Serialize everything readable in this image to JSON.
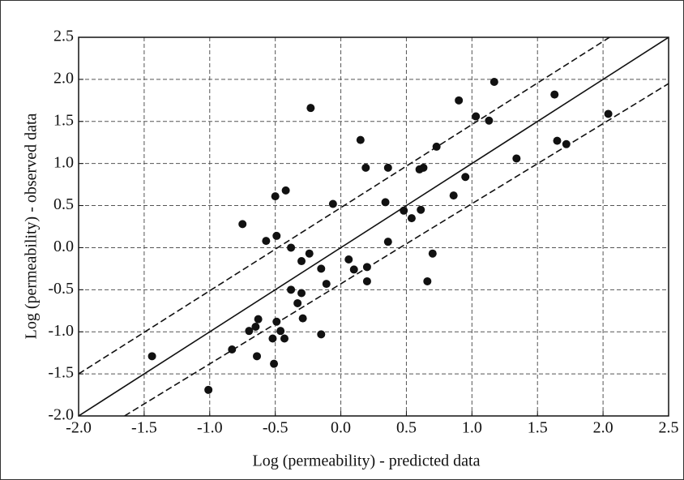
{
  "chart_data": {
    "type": "scatter",
    "x_label": "Log (permeability) - predicted data",
    "y_label": "Log (permeability) - observed data",
    "color": "#111111",
    "grid": true,
    "xlim": [
      -2.0,
      2.5
    ],
    "ylim": [
      -2.0,
      2.5
    ],
    "xticks": [
      {
        "value": -2,
        "label": "-2.0"
      },
      -1.5,
      {
        "value": -1,
        "label": "-1.0"
      },
      -0.5,
      {
        "value": 0,
        "label": "0.0"
      },
      0.5,
      {
        "value": 1,
        "label": "1.0"
      },
      1.5,
      {
        "value": 2,
        "label": "2.0"
      },
      2.5
    ],
    "yticks": [
      {
        "value": -2,
        "label": "-2.0"
      },
      -1.5,
      {
        "value": -1,
        "label": "-1.0"
      },
      -0.5,
      {
        "value": 0,
        "label": "0.0"
      },
      0.5,
      {
        "value": 1,
        "label": "1.0"
      },
      1.5,
      {
        "value": 2,
        "label": "2.0"
      },
      2.5
    ],
    "x": [
      -1.44,
      -1.01,
      -0.75,
      -0.83,
      -0.7,
      -0.65,
      -0.63,
      -0.64,
      -0.57,
      -0.52,
      -0.51,
      -0.5,
      -0.49,
      -0.49,
      -0.46,
      -0.43,
      -0.42,
      -0.38,
      -0.38,
      -0.33,
      -0.3,
      -0.3,
      -0.29,
      -0.24,
      -0.23,
      -0.15,
      -0.15,
      -0.11,
      -0.06,
      0.06,
      0.1,
      0.15,
      0.19,
      0.2,
      0.2,
      0.34,
      0.36,
      0.36,
      0.48,
      0.54,
      0.6,
      0.61,
      0.63,
      0.66,
      0.7,
      0.73,
      0.86,
      0.9,
      0.95,
      1.03,
      1.13,
      1.17,
      1.34,
      1.63,
      1.65,
      1.72,
      2.04
    ],
    "y": [
      -1.29,
      -1.69,
      0.28,
      -1.21,
      -0.99,
      -0.94,
      -0.85,
      -1.29,
      0.08,
      -1.08,
      -1.38,
      0.61,
      0.14,
      -0.88,
      -0.99,
      -1.08,
      0.68,
      0.0,
      -0.5,
      -0.66,
      -0.16,
      -0.54,
      -0.84,
      -0.07,
      1.66,
      -0.25,
      -1.03,
      -0.43,
      0.52,
      -0.14,
      -0.26,
      1.28,
      0.95,
      -0.23,
      -0.4,
      0.54,
      0.07,
      0.95,
      0.44,
      0.35,
      0.93,
      0.45,
      0.95,
      -0.4,
      -0.07,
      1.2,
      0.62,
      1.75,
      0.84,
      1.56,
      1.51,
      1.97,
      1.06,
      1.82,
      1.27,
      1.23,
      1.59
    ],
    "lines": [
      {
        "style": "solid",
        "x": [
          -2.0,
          2.5
        ],
        "y": [
          -2.0,
          2.5
        ]
      },
      {
        "style": "dashed",
        "x": [
          -2.0,
          2.05
        ],
        "y": [
          -1.5,
          2.5
        ]
      },
      {
        "style": "dashed",
        "x": [
          -1.65,
          2.5
        ],
        "y": [
          -2.0,
          1.95
        ]
      }
    ]
  }
}
